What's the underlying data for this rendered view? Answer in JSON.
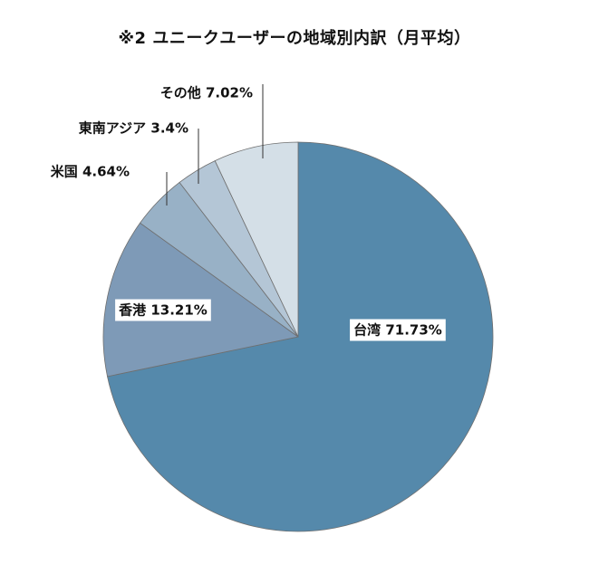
{
  "chart_data": {
    "type": "pie",
    "title": "※2 ユニークユーザーの地域別内訳（月平均）",
    "start_angle_deg": 0,
    "direction": "clockwise",
    "slices": [
      {
        "label": "台湾",
        "value": 71.73,
        "display": "台湾 71.73%",
        "color": "#5589ab"
      },
      {
        "label": "香港",
        "value": 13.21,
        "display": "香港 13.21%",
        "color": "#7e9ab7"
      },
      {
        "label": "米国",
        "value": 4.64,
        "display": "米国 4.64%",
        "color": "#98b1c6"
      },
      {
        "label": "東南アジア",
        "value": 3.4,
        "display": "東南アジア 3.4%",
        "color": "#b4c6d6"
      },
      {
        "label": "その他",
        "value": 7.02,
        "display": "その他 7.02%",
        "color": "#d4dfe7"
      }
    ]
  }
}
